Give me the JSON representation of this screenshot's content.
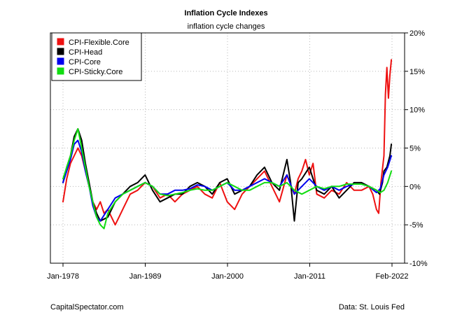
{
  "chart_data": {
    "type": "line",
    "title": "Inflation Cycle Indexes",
    "subtitle": "inflation cycle changes",
    "xlabel": "",
    "ylabel": "",
    "x_tick_labels": [
      "Jan-1978",
      "Jan-1989",
      "Jan-2000",
      "Jan-2011",
      "Feb-2022"
    ],
    "y_tick_labels": [
      "20%",
      "15%",
      "10%",
      "5%",
      "0%",
      "-5%",
      "-10%"
    ],
    "y_ticks": [
      20,
      15,
      10,
      5,
      0,
      -5,
      -10
    ],
    "ylim": [
      -10,
      20
    ],
    "xlim": [
      1978.0,
      2022.08
    ],
    "y_axis_side": "right",
    "grid": true,
    "legend_position": "top-left",
    "source_left": "CapitalSpectator.com",
    "source_right": "Data: St. Louis Fed",
    "series": [
      {
        "name": "CPI-Flexible.Core",
        "color": "#ee1111",
        "x": [
          1978.0,
          1978.5,
          1979.0,
          1979.5,
          1980.0,
          1980.5,
          1981.0,
          1981.5,
          1982.0,
          1982.5,
          1983.0,
          1983.5,
          1984.0,
          1984.5,
          1985.0,
          1985.5,
          1986.0,
          1986.5,
          1987.0,
          1988.0,
          1989.0,
          1990.0,
          1991.0,
          1992.0,
          1993.0,
          1994.0,
          1995.0,
          1996.0,
          1997.0,
          1998.0,
          1999.0,
          2000.0,
          2001.0,
          2002.0,
          2003.0,
          2004.0,
          2005.0,
          2006.0,
          2007.0,
          2008.0,
          2009.0,
          2009.5,
          2010.0,
          2010.5,
          2011.0,
          2011.5,
          2012.0,
          2013.0,
          2014.0,
          2015.0,
          2016.0,
          2017.0,
          2018.0,
          2019.0,
          2019.5,
          2020.0,
          2020.3,
          2020.6,
          2021.0,
          2021.2,
          2021.4,
          2021.6,
          2021.8,
          2022.0
        ],
        "y": [
          -2.0,
          1.0,
          3.0,
          4.0,
          5.0,
          4.0,
          2.0,
          0.0,
          -2.0,
          -3.0,
          -2.0,
          -3.5,
          -3.0,
          -4.0,
          -5.0,
          -4.0,
          -3.0,
          -2.0,
          -1.0,
          -0.5,
          0.5,
          0.0,
          -1.5,
          -1.0,
          -2.0,
          -1.0,
          -0.5,
          0.0,
          -1.0,
          -1.5,
          0.5,
          -2.0,
          -3.0,
          -1.0,
          0.0,
          1.0,
          2.0,
          0.0,
          -2.0,
          1.5,
          -1.0,
          1.0,
          2.0,
          3.5,
          1.5,
          3.0,
          -1.0,
          -1.5,
          -0.5,
          -1.0,
          0.5,
          -0.5,
          -0.5,
          0.0,
          -1.0,
          -3.0,
          -3.5,
          0.5,
          4.0,
          12.0,
          15.5,
          11.5,
          14.5,
          16.5
        ]
      },
      {
        "name": "CPI-Head",
        "color": "#000000",
        "x": [
          1978.0,
          1978.5,
          1979.0,
          1979.5,
          1980.0,
          1980.5,
          1981.0,
          1981.5,
          1982.0,
          1982.5,
          1983.0,
          1984.0,
          1985.0,
          1986.0,
          1986.5,
          1987.0,
          1988.0,
          1989.0,
          1990.0,
          1991.0,
          1992.0,
          1993.0,
          1994.0,
          1995.0,
          1996.0,
          1997.0,
          1998.0,
          1999.0,
          2000.0,
          2001.0,
          2002.0,
          2003.0,
          2004.0,
          2005.0,
          2006.0,
          2007.0,
          2008.0,
          2008.5,
          2009.0,
          2009.5,
          2010.0,
          2011.0,
          2012.0,
          2013.0,
          2014.0,
          2015.0,
          2016.0,
          2017.0,
          2018.0,
          2019.0,
          2020.0,
          2020.4,
          2020.8,
          2021.0,
          2021.4,
          2021.8,
          2022.0
        ],
        "y": [
          0.5,
          2.5,
          4.0,
          6.5,
          7.5,
          6.0,
          3.0,
          0.5,
          -2.0,
          -3.5,
          -4.5,
          -4.0,
          -2.0,
          -1.0,
          -0.5,
          0.0,
          0.5,
          1.5,
          -0.5,
          -2.0,
          -1.5,
          -1.0,
          -1.0,
          0.0,
          0.5,
          0.0,
          -1.0,
          0.5,
          1.0,
          -1.0,
          -0.5,
          0.0,
          1.5,
          2.5,
          0.5,
          -0.5,
          3.5,
          0.5,
          -4.5,
          0.5,
          1.0,
          2.5,
          -0.5,
          -1.0,
          0.0,
          -1.5,
          -0.5,
          0.5,
          0.5,
          0.0,
          -0.5,
          -1.0,
          0.5,
          2.0,
          2.5,
          4.0,
          5.5
        ]
      },
      {
        "name": "CPI-Core",
        "color": "#0000ee",
        "x": [
          1978.0,
          1978.5,
          1979.0,
          1979.5,
          1980.0,
          1980.5,
          1981.0,
          1981.5,
          1982.0,
          1982.5,
          1983.0,
          1984.0,
          1985.0,
          1986.0,
          1987.0,
          1988.0,
          1989.0,
          1990.0,
          1991.0,
          1992.0,
          1993.0,
          1994.0,
          1995.0,
          1996.0,
          1997.0,
          1998.0,
          1999.0,
          2000.0,
          2001.0,
          2002.0,
          2003.0,
          2004.0,
          2005.0,
          2006.0,
          2007.0,
          2008.0,
          2009.0,
          2010.0,
          2011.0,
          2012.0,
          2013.0,
          2014.0,
          2015.0,
          2016.0,
          2017.0,
          2018.0,
          2019.0,
          2020.0,
          2020.5,
          2021.0,
          2021.5,
          2022.0
        ],
        "y": [
          0.5,
          2.0,
          3.5,
          5.5,
          6.0,
          4.5,
          2.0,
          0.0,
          -2.5,
          -4.0,
          -4.5,
          -3.0,
          -1.5,
          -1.0,
          -0.5,
          0.0,
          0.5,
          0.0,
          -1.0,
          -1.0,
          -0.5,
          -0.5,
          -0.3,
          0.2,
          0.0,
          -0.5,
          0.0,
          0.5,
          -0.5,
          -0.5,
          0.0,
          0.5,
          1.0,
          0.5,
          0.0,
          1.5,
          -1.0,
          0.0,
          1.0,
          0.0,
          -0.5,
          0.0,
          -0.5,
          0.0,
          0.3,
          0.3,
          0.0,
          -0.8,
          -0.3,
          1.5,
          2.5,
          4.0
        ]
      },
      {
        "name": "CPI-Sticky.Core",
        "color": "#11dd11",
        "x": [
          1978.0,
          1978.5,
          1979.0,
          1979.5,
          1980.0,
          1980.5,
          1981.0,
          1981.5,
          1982.0,
          1982.5,
          1983.0,
          1983.5,
          1984.0,
          1985.0,
          1986.0,
          1987.0,
          1988.0,
          1989.0,
          1990.0,
          1991.0,
          1992.0,
          1993.0,
          1994.0,
          1995.0,
          1996.0,
          1997.0,
          1998.0,
          1999.0,
          2000.0,
          2001.0,
          2002.0,
          2003.0,
          2004.0,
          2005.0,
          2006.0,
          2007.0,
          2008.0,
          2009.0,
          2010.0,
          2011.0,
          2012.0,
          2013.0,
          2014.0,
          2015.0,
          2016.0,
          2017.0,
          2018.0,
          2019.0,
          2020.0,
          2020.5,
          2021.0,
          2021.5,
          2022.0
        ],
        "y": [
          1.0,
          2.5,
          4.0,
          6.0,
          7.5,
          5.0,
          2.5,
          0.0,
          -2.0,
          -4.0,
          -5.0,
          -5.5,
          -3.5,
          -2.0,
          -1.0,
          -0.5,
          0.0,
          0.5,
          0.0,
          -1.0,
          -1.2,
          -1.0,
          -0.8,
          -0.5,
          -0.3,
          -0.5,
          -0.5,
          0.0,
          0.5,
          0.0,
          -0.5,
          -0.5,
          0.0,
          0.5,
          0.5,
          0.0,
          0.5,
          -0.5,
          -1.0,
          -0.5,
          0.0,
          -0.3,
          0.0,
          0.0,
          0.3,
          0.3,
          0.3,
          0.0,
          -0.5,
          -0.8,
          -0.5,
          0.5,
          2.0
        ]
      }
    ]
  }
}
